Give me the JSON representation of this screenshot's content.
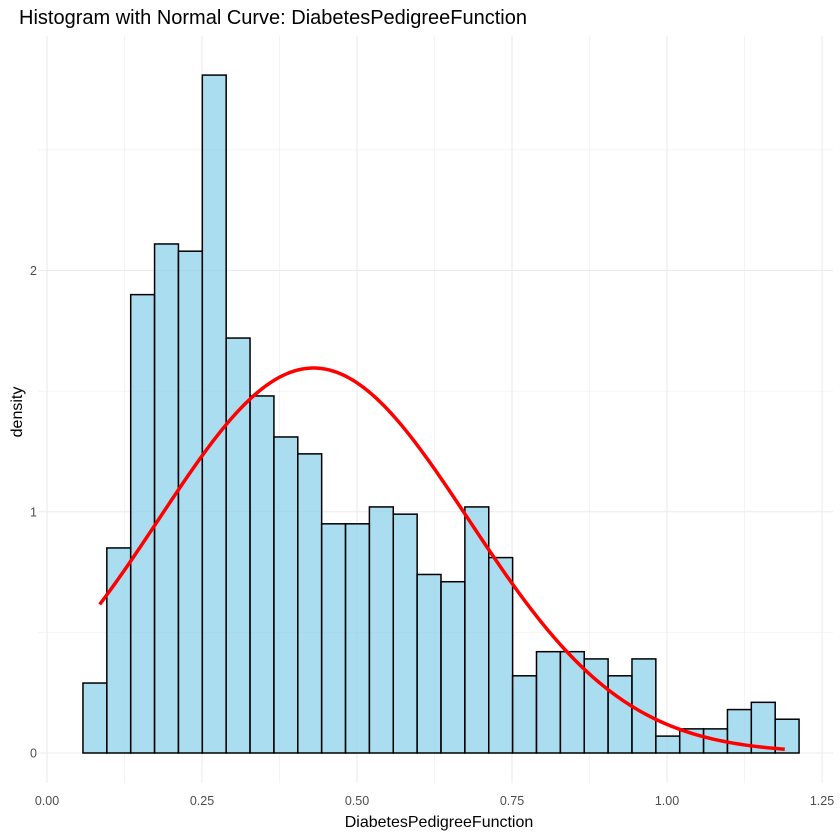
{
  "chart_data": {
    "type": "histogram",
    "title": "Histogram with Normal Curve:  DiabetesPedigreeFunction",
    "xlabel": "DiabetesPedigreeFunction",
    "ylabel": "density",
    "xlim": [
      0.0,
      1.25
    ],
    "ylim": [
      0,
      2.8
    ],
    "x_ticks": [
      0.0,
      0.25,
      0.5,
      0.75,
      1.0,
      1.25
    ],
    "x_tick_labels": [
      "0.00",
      "0.25",
      "0.50",
      "0.75",
      "1.00",
      "1.25"
    ],
    "y_ticks": [
      0,
      1,
      2
    ],
    "y_tick_labels": [
      "0",
      "1",
      "2"
    ],
    "grid": true,
    "bin_width": 0.0385,
    "bins": [
      {
        "x0": 0.058,
        "x1": 0.0965,
        "density": 0.29
      },
      {
        "x0": 0.0965,
        "x1": 0.135,
        "density": 0.85
      },
      {
        "x0": 0.135,
        "x1": 0.1735,
        "density": 1.9
      },
      {
        "x0": 0.1735,
        "x1": 0.212,
        "density": 2.11
      },
      {
        "x0": 0.212,
        "x1": 0.2505,
        "density": 2.08
      },
      {
        "x0": 0.2505,
        "x1": 0.289,
        "density": 2.81
      },
      {
        "x0": 0.289,
        "x1": 0.3275,
        "density": 1.72
      },
      {
        "x0": 0.3275,
        "x1": 0.366,
        "density": 1.48
      },
      {
        "x0": 0.366,
        "x1": 0.4045,
        "density": 1.31
      },
      {
        "x0": 0.4045,
        "x1": 0.443,
        "density": 1.24
      },
      {
        "x0": 0.443,
        "x1": 0.4815,
        "density": 0.95
      },
      {
        "x0": 0.4815,
        "x1": 0.52,
        "density": 0.95
      },
      {
        "x0": 0.52,
        "x1": 0.5585,
        "density": 1.02
      },
      {
        "x0": 0.5585,
        "x1": 0.597,
        "density": 0.99
      },
      {
        "x0": 0.597,
        "x1": 0.6355,
        "density": 0.74
      },
      {
        "x0": 0.6355,
        "x1": 0.674,
        "density": 0.71
      },
      {
        "x0": 0.674,
        "x1": 0.7125,
        "density": 1.02
      },
      {
        "x0": 0.7125,
        "x1": 0.751,
        "density": 0.81
      },
      {
        "x0": 0.751,
        "x1": 0.7895,
        "density": 0.32
      },
      {
        "x0": 0.7895,
        "x1": 0.828,
        "density": 0.42
      },
      {
        "x0": 0.828,
        "x1": 0.8665,
        "density": 0.42
      },
      {
        "x0": 0.8665,
        "x1": 0.905,
        "density": 0.39
      },
      {
        "x0": 0.905,
        "x1": 0.9435,
        "density": 0.32
      },
      {
        "x0": 0.9435,
        "x1": 0.982,
        "density": 0.39
      },
      {
        "x0": 0.982,
        "x1": 1.0205,
        "density": 0.07
      },
      {
        "x0": 1.0205,
        "x1": 1.059,
        "density": 0.1
      },
      {
        "x0": 1.059,
        "x1": 1.0975,
        "density": 0.1
      },
      {
        "x0": 1.0975,
        "x1": 1.136,
        "density": 0.18
      },
      {
        "x0": 1.136,
        "x1": 1.1745,
        "density": 0.21
      },
      {
        "x0": 1.1745,
        "x1": 1.213,
        "density": 0.14
      }
    ],
    "normal_curve": {
      "mean": 0.43,
      "sd": 0.25,
      "x_range": [
        0.085,
        1.19
      ]
    },
    "colors": {
      "bar_fill": "#87CEEB",
      "bar_fill_opacity": 0.7,
      "bar_stroke": "#000000",
      "curve": "#FF0000",
      "grid": "#EBEBEB",
      "background": "#FFFFFF"
    }
  }
}
